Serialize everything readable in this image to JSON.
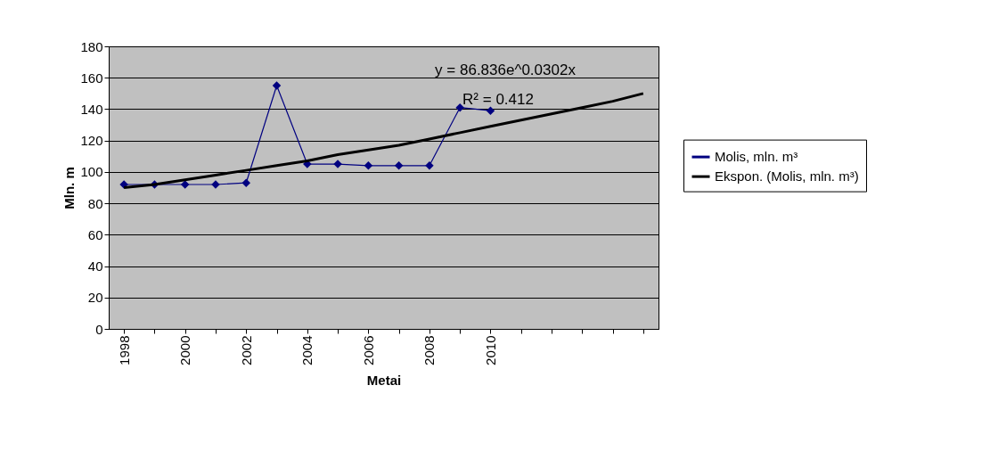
{
  "chart_data": {
    "type": "line",
    "xlabel": "Metai",
    "ylabel": "Mln. m",
    "categories": [
      "1998",
      null,
      "2000",
      null,
      "2002",
      null,
      "2004",
      null,
      "2006",
      null,
      "2008",
      null,
      "2010",
      null,
      null,
      null,
      null,
      null
    ],
    "series": [
      {
        "name": "Molis, mln. m³",
        "color": "#000080",
        "marker": "diamond",
        "values": [
          92,
          92,
          92,
          92,
          93,
          155,
          105,
          105,
          104,
          104,
          104,
          141,
          139,
          null,
          null,
          null,
          null,
          null
        ]
      },
      {
        "name": "Ekspon. (Molis, mln. m³)",
        "color": "#000000",
        "marker": "none",
        "values": [
          90,
          92,
          95,
          98,
          101,
          104,
          107,
          111,
          114,
          117,
          121,
          125,
          129,
          133,
          137,
          141,
          145,
          150
        ]
      }
    ],
    "ylim": [
      0,
      180
    ],
    "yticks": [
      0,
      20,
      40,
      60,
      80,
      100,
      120,
      140,
      160,
      180
    ],
    "grid": "y",
    "legend": "right",
    "annotations": [
      "y = 86.836e^0.0302x",
      "R² = 0.412"
    ]
  }
}
